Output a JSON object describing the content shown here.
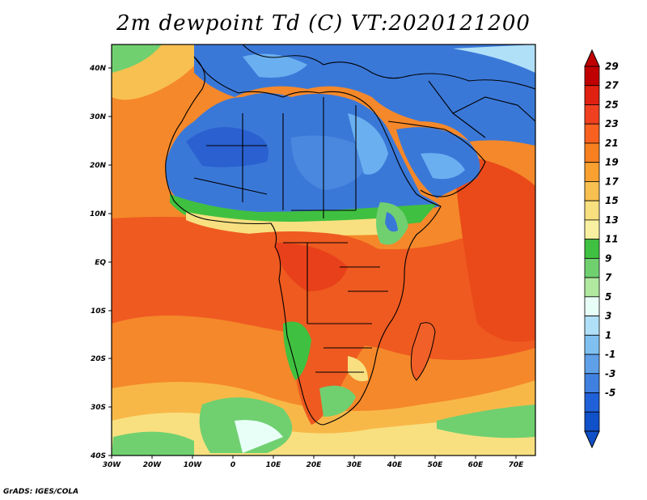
{
  "title": "2m dewpoint Td (C) VT:2020121200",
  "footer": "GrADS: IGES/COLA",
  "map": {
    "lat_labels": [
      "40N",
      "30N",
      "20N",
      "10N",
      "EQ",
      "10S",
      "20S",
      "30S",
      "40S"
    ],
    "lon_labels": [
      "30W",
      "20W",
      "10W",
      "0",
      "10E",
      "20E",
      "30E",
      "40E",
      "50E",
      "60E",
      "70E"
    ]
  },
  "colorbar": {
    "levels": [
      "29",
      "27",
      "25",
      "23",
      "21",
      "19",
      "17",
      "15",
      "13",
      "11",
      "9",
      "7",
      "5",
      "3",
      "1",
      "-1",
      "-3",
      "-5"
    ],
    "colors": [
      "#c00000",
      "#e02010",
      "#f04020",
      "#f86020",
      "#f88020",
      "#f8a030",
      "#f8c050",
      "#f8e080",
      "#f8f0a0",
      "#40c040",
      "#70d070",
      "#b0e8a0",
      "#e8fff8",
      "#b0e0f8",
      "#80c0f0",
      "#60a0e8",
      "#4080e0",
      "#2060d8",
      "#1050c8"
    ]
  },
  "colors": {
    "ocean_warm": "#f06028",
    "land_dry": "#3a78d8",
    "land_humid": "#ee5a20"
  }
}
